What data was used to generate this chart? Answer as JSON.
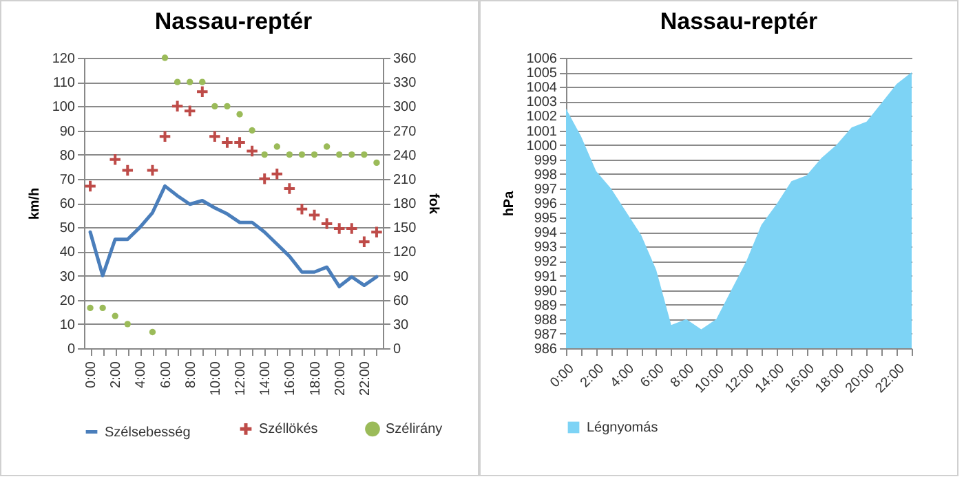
{
  "chart_data": [
    {
      "type": "line",
      "title": "Nassau-reptér",
      "ylabel": "km/h",
      "y2label": "fok",
      "categories": [
        "0:00",
        null,
        "2:00",
        null,
        "4:00",
        null,
        "6:00",
        null,
        "8:00",
        null,
        "10:00",
        null,
        "12:00",
        null,
        "14:00",
        null,
        "16:00",
        null,
        "18:00",
        null,
        "20:00",
        null,
        "22:00",
        null
      ],
      "series": [
        {
          "name": "Szélsebesség",
          "type": "line",
          "color": "#4a7ebb",
          "values": [
            48,
            30,
            45,
            45,
            50,
            56,
            67,
            63,
            59.5,
            61,
            58,
            55.5,
            52,
            52,
            48,
            43,
            38,
            31.5,
            31.5,
            33.5,
            25.5,
            29.5,
            26,
            29.5
          ]
        },
        {
          "name": "Széllökés",
          "type": "scatter",
          "marker": "cross",
          "color": "#be4b48",
          "values": [
            67,
            null,
            78,
            73.5,
            null,
            73.5,
            87.5,
            100,
            98,
            106,
            87.5,
            85,
            85,
            81.5,
            70,
            72,
            66,
            57.5,
            55,
            51.5,
            49.5,
            49.5,
            44,
            48
          ]
        },
        {
          "name": "Szélirány",
          "type": "scatter",
          "marker": "circle",
          "axis": "y2",
          "color": "#9bbb59",
          "values": [
            50,
            50,
            40,
            30,
            null,
            20,
            360,
            330,
            330,
            330,
            300,
            300,
            290,
            270,
            240,
            250,
            240,
            240,
            240,
            250,
            240,
            240,
            240,
            230
          ]
        }
      ],
      "ylim": [
        0,
        120
      ],
      "yticks": [
        0,
        10,
        20,
        30,
        40,
        50,
        60,
        70,
        80,
        90,
        100,
        110,
        120
      ],
      "y2lim": [
        0,
        360
      ],
      "y2ticks": [
        0,
        30,
        60,
        90,
        120,
        150,
        180,
        210,
        240,
        270,
        300,
        330,
        360
      ],
      "grid": "y",
      "legend": "bottom"
    },
    {
      "type": "area",
      "title": "Nassau-reptér",
      "ylabel": "hPa",
      "categories": [
        "0:00",
        null,
        "2:00",
        null,
        "4:00",
        null,
        "6:00",
        null,
        "8:00",
        null,
        "10:00",
        null,
        "12:00",
        null,
        "14:00",
        null,
        "16:00",
        null,
        "18:00",
        null,
        "20:00",
        null,
        "22:00",
        null
      ],
      "series": [
        {
          "name": "Légnyomás",
          "color": "#7dd3f5",
          "values": [
            1002.5,
            1000.6,
            998.2,
            997,
            995.4,
            993.8,
            991.4,
            987.6,
            988,
            987.3,
            988,
            990,
            992,
            994.5,
            995.9,
            997.5,
            997.9,
            999.1,
            1000,
            1001.2,
            1001.6,
            1002.9,
            1004.2,
            1005
          ]
        }
      ],
      "ylim": [
        986,
        1006
      ],
      "yticks": [
        986,
        987,
        988,
        989,
        990,
        991,
        992,
        993,
        994,
        995,
        996,
        997,
        998,
        999,
        1000,
        1001,
        1002,
        1003,
        1004,
        1005,
        1006
      ],
      "grid": "y",
      "legend": "bottom"
    }
  ]
}
